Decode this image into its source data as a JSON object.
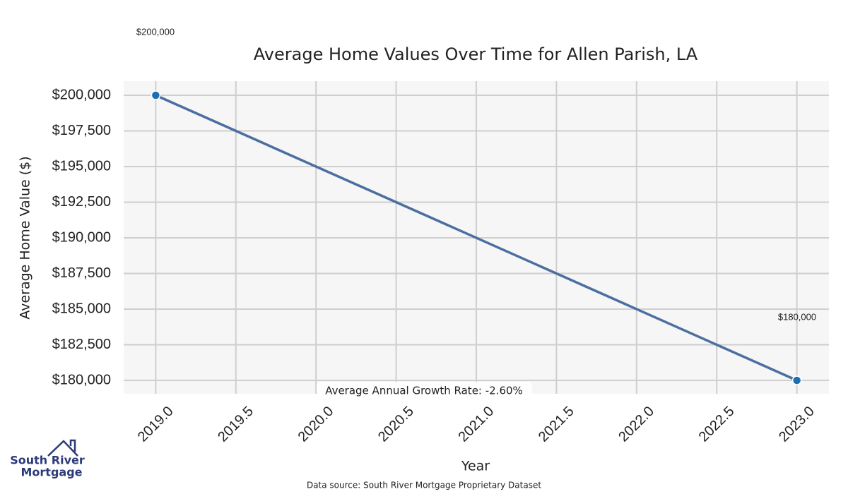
{
  "chart_data": {
    "type": "line",
    "title": "Average Home Values Over Time for Allen Parish, LA",
    "xlabel": "Year",
    "ylabel": "Average Home Value ($)",
    "x": [
      2019,
      2023
    ],
    "series": [
      {
        "name": "Average Home Value",
        "color": "#4a6fa0",
        "marker_color": "#1f6fb0",
        "values": [
          200000,
          180000
        ],
        "value_labels": [
          "$200,000",
          "$180,000"
        ]
      }
    ],
    "xlim": [
      2018.8,
      2023.2
    ],
    "xticks": [
      {
        "value": 2019,
        "label": "2019.0"
      },
      {
        "value": 2019.5,
        "label": "2019.5"
      },
      {
        "value": 2020,
        "label": "2020.0"
      },
      {
        "value": 2020.5,
        "label": "2020.5"
      },
      {
        "value": 2021,
        "label": "2021.0"
      },
      {
        "value": 2021.5,
        "label": "2021.5"
      },
      {
        "value": 2022,
        "label": "2022.0"
      },
      {
        "value": 2022.5,
        "label": "2022.5"
      },
      {
        "value": 2023,
        "label": "2023.0"
      }
    ],
    "ylim": [
      179060,
      200990
    ],
    "yticks": [
      {
        "value": 180000,
        "label": "$180,000"
      },
      {
        "value": 182500,
        "label": "$182,500"
      },
      {
        "value": 185000,
        "label": "$185,000"
      },
      {
        "value": 187500,
        "label": "$187,500"
      },
      {
        "value": 190000,
        "label": "$190,000"
      },
      {
        "value": 192500,
        "label": "$192,500"
      },
      {
        "value": 195000,
        "label": "$195,000"
      },
      {
        "value": 197500,
        "label": "$197,500"
      },
      {
        "value": 200000,
        "label": "$200,000"
      }
    ],
    "grid": true,
    "annotation": "Average Annual Growth Rate: -2.60%",
    "source": "Data source: South River Mortgage Proprietary Dataset"
  },
  "logo": {
    "lines": [
      "South River",
      "Mortgage"
    ]
  }
}
